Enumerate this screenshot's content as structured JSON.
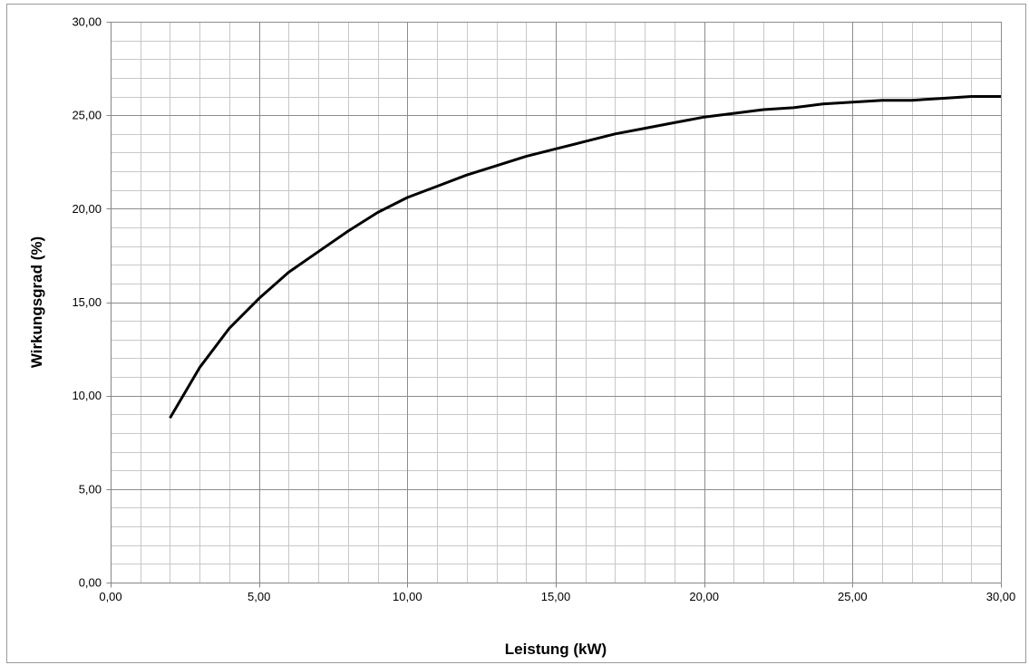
{
  "chart_data": {
    "type": "line",
    "title": "",
    "xlabel": "Leistung (kW)",
    "ylabel": "Wirkungsgrad (%)",
    "xlim": [
      0,
      30
    ],
    "ylim": [
      0,
      30
    ],
    "x_major_step": 5,
    "x_minor_step": 1,
    "y_major_step": 5,
    "y_minor_step": 1,
    "grid": true,
    "legend": "none",
    "x_tick_labels": [
      "0,00",
      "5,00",
      "10,00",
      "15,00",
      "20,00",
      "25,00",
      "30,00"
    ],
    "y_tick_labels": [
      "0,00",
      "5,00",
      "10,00",
      "15,00",
      "20,00",
      "25,00",
      "30,00"
    ],
    "colors": {
      "line": "#000000",
      "major_grid": "#8c8c8c",
      "minor_grid": "#c8c8c8",
      "axis": "#868686"
    },
    "series": [
      {
        "x": [
          2,
          3,
          4,
          5,
          6,
          7,
          8,
          9,
          10,
          11,
          12,
          13,
          14,
          15,
          16,
          17,
          18,
          19,
          20,
          21,
          22,
          23,
          24,
          25,
          26,
          27,
          28,
          29,
          30
        ],
        "values": [
          8.8,
          11.5,
          13.6,
          15.2,
          16.6,
          17.7,
          18.8,
          19.8,
          20.6,
          21.2,
          21.8,
          22.3,
          22.8,
          23.2,
          23.6,
          24.0,
          24.3,
          24.6,
          24.9,
          25.1,
          25.3,
          25.4,
          25.6,
          25.7,
          25.8,
          25.8,
          25.9,
          26.0,
          26.0
        ]
      }
    ]
  }
}
